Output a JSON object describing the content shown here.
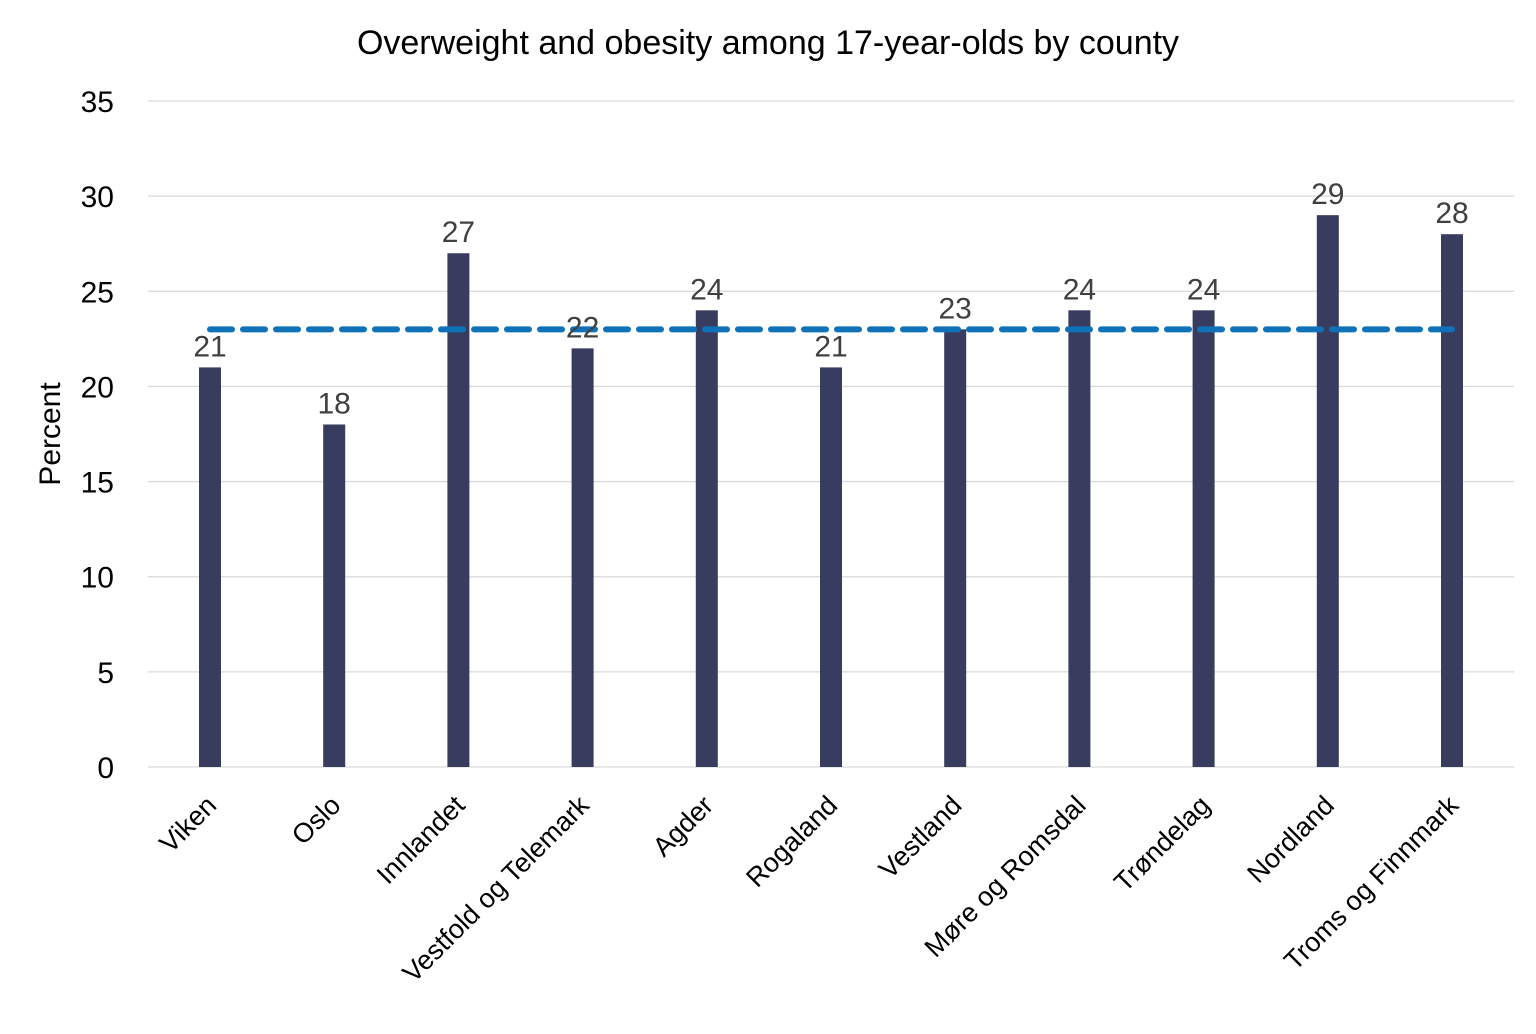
{
  "chart_data": {
    "type": "bar",
    "title": "Overweight and obesity among 17-year-olds by county",
    "xlabel": "",
    "ylabel": "Percent",
    "ylim": [
      0,
      35
    ],
    "yticks": [
      "0",
      "5",
      "10",
      "15",
      "20",
      "25",
      "30",
      "35"
    ],
    "grid": true,
    "categories": [
      "Viken",
      "Oslo",
      "Innlandet",
      "Vestfold og Telemark",
      "Agder",
      "Rogaland",
      "Vestland",
      "Møre og Romsdal",
      "Trøndelag",
      "Nordland",
      "Troms og Finnmark"
    ],
    "values": [
      21,
      18,
      27,
      22,
      24,
      21,
      23,
      24,
      24,
      29,
      28
    ],
    "data_labels": [
      "21",
      "18",
      "27",
      "22",
      "24",
      "21",
      "23",
      "24",
      "24",
      "29",
      "28"
    ],
    "reference_line": {
      "value": 23,
      "style": "dashed"
    },
    "colors": {
      "bar": "#383c5f",
      "reference_line": "#0f72b8",
      "grid": "#d9d9d9",
      "data_label": "#404040"
    }
  }
}
